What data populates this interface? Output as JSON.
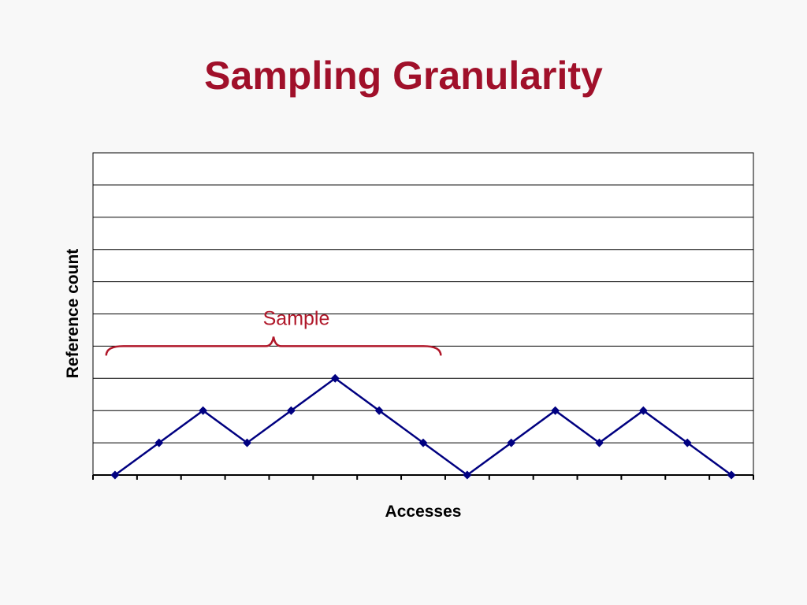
{
  "colors": {
    "title": "#a0102a",
    "series": "#000080",
    "annotation": "#b0182a",
    "brace": "#b0182a",
    "grid": "#000000"
  },
  "chart_data": {
    "type": "line",
    "title": "Sampling Granularity",
    "xlabel": "Accesses",
    "ylabel": "Reference count",
    "x": [
      1,
      2,
      3,
      4,
      5,
      6,
      7,
      8,
      9,
      10,
      11,
      12,
      13,
      14,
      15
    ],
    "series": [
      {
        "values": [
          0,
          1,
          2,
          1,
          2,
          3,
          2,
          1,
          0,
          1,
          2,
          1,
          2,
          1,
          0
        ]
      }
    ],
    "xlim": [
      0.5,
      15.5
    ],
    "ylim": [
      0,
      10
    ],
    "y_gridlines": [
      1,
      2,
      3,
      4,
      5,
      6,
      7,
      8,
      9,
      10
    ],
    "x_ticks": [
      0.5,
      1.5,
      2.5,
      3.5,
      4.5,
      5.5,
      6.5,
      7.5,
      8.5,
      9.5,
      10.5,
      11.5,
      12.5,
      13.5,
      14.5,
      15.5
    ],
    "grid": true,
    "legend": "none",
    "marker": "diamond",
    "annotations": [
      {
        "text": "Sample",
        "type": "brace",
        "x_start": 0.8,
        "x_end": 8.4,
        "y": 4
      }
    ]
  }
}
